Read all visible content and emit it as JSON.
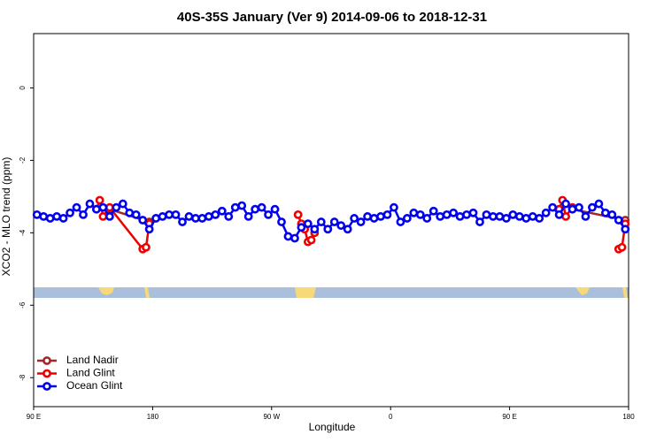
{
  "chart_data": {
    "type": "line",
    "title": "40S-35S January (Ver 9)   2014-09-06 to 2018-12-31",
    "x_label": "Longitude",
    "y_label": "XCO2 - MLO trend (ppm)",
    "xlim": [
      90,
      540
    ],
    "ylim": [
      -8.8,
      1.5
    ],
    "xticks": [
      {
        "value": 90,
        "label": "90 E"
      },
      {
        "value": 180,
        "label": "180"
      },
      {
        "value": 270,
        "label": "90 W"
      },
      {
        "value": 360,
        "label": "0"
      },
      {
        "value": 450,
        "label": "90 E"
      },
      {
        "value": 540,
        "label": "180"
      }
    ],
    "yticks": [
      0,
      -2,
      -4,
      -6,
      -8
    ],
    "legend": "bottom-left",
    "series": [
      {
        "name": "Land Nadir",
        "color": "#a02828",
        "x": [
          147.5,
          177.5,
          300,
          497.5,
          537.5
        ],
        "values": [
          -3.35,
          -3.7,
          null,
          -3.35,
          -3.65
        ]
      },
      {
        "name": "Land Glint",
        "color": "#ee0000",
        "x": [
          137.5,
          140,
          142.5,
          147.5,
          172.5,
          175,
          177.5,
          230,
          290,
          292.5,
          295,
          297.5,
          300,
          302.5,
          400,
          487.5,
          490,
          492.5,
          497.5,
          530,
          532.5,
          535,
          537.5
        ],
        "values": [
          -3.35,
          -3.1,
          -3.55,
          -3.3,
          -4.45,
          -4.4,
          -3.75,
          null,
          -3.5,
          -3.75,
          -3.9,
          -4.25,
          -4.2,
          -4.0,
          null,
          -3.35,
          -3.1,
          -3.55,
          -3.3,
          null,
          -4.45,
          -4.4,
          -3.75
        ]
      },
      {
        "name": "Ocean Glint",
        "color": "#0000ee",
        "x": [
          92.5,
          97.5,
          102.5,
          107.5,
          112.5,
          117.5,
          122.5,
          127.5,
          132.5,
          137.5,
          142.5,
          147.5,
          152.5,
          157.5,
          162.5,
          167.5,
          172.5,
          177.5,
          182.5,
          187.5,
          192.5,
          197.5,
          202.5,
          207.5,
          212.5,
          217.5,
          222.5,
          227.5,
          232.5,
          237.5,
          242.5,
          247.5,
          252.5,
          257.5,
          262.5,
          267.5,
          272.5,
          277.5,
          282.5,
          287.5,
          292.5,
          297.5,
          302.5,
          307.5,
          312.5,
          317.5,
          322.5,
          327.5,
          332.5,
          337.5,
          342.5,
          347.5,
          352.5,
          357.5,
          362.5,
          367.5,
          372.5,
          377.5,
          382.5,
          387.5,
          392.5,
          397.5,
          402.5,
          407.5,
          412.5,
          417.5,
          422.5,
          427.5,
          432.5,
          437.5,
          442.5,
          447.5,
          452.5,
          457.5,
          462.5,
          467.5,
          472.5,
          477.5,
          482.5,
          487.5,
          492.5,
          497.5,
          502.5,
          507.5,
          512.5,
          517.5,
          522.5,
          527.5,
          532.5,
          537.5
        ],
        "values": [
          -3.5,
          -3.55,
          -3.6,
          -3.55,
          -3.6,
          -3.45,
          -3.3,
          -3.5,
          -3.2,
          -3.35,
          -3.3,
          -3.55,
          -3.3,
          -3.2,
          -3.45,
          -3.5,
          -3.65,
          -3.9,
          -3.6,
          -3.55,
          -3.5,
          -3.5,
          -3.7,
          -3.55,
          -3.6,
          -3.6,
          -3.55,
          -3.5,
          -3.4,
          -3.55,
          -3.3,
          -3.25,
          -3.55,
          -3.35,
          -3.3,
          -3.5,
          -3.35,
          -3.7,
          -4.1,
          -4.15,
          -3.85,
          -3.75,
          -3.9,
          -3.7,
          -3.9,
          -3.7,
          -3.8,
          -3.9,
          -3.6,
          -3.7,
          -3.55,
          -3.6,
          -3.55,
          -3.5,
          -3.3,
          -3.7,
          -3.6,
          -3.45,
          -3.5,
          -3.6,
          -3.4,
          -3.55,
          -3.5,
          -3.45,
          -3.55,
          -3.5,
          -3.45,
          -3.7,
          -3.5,
          -3.55,
          -3.55,
          -3.6,
          -3.5,
          -3.55,
          -3.6,
          -3.55,
          -3.6,
          -3.45,
          -3.3,
          -3.5,
          -3.2,
          -3.35,
          -3.3,
          -3.55,
          -3.3,
          -3.2,
          -3.45,
          -3.5,
          -3.65,
          -3.9
        ]
      }
    ]
  }
}
